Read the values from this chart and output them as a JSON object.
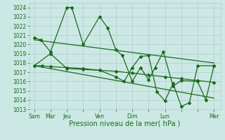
{
  "background_color": "#cce8e4",
  "grid_color": "#aacccc",
  "line_color": "#1a6b1a",
  "marker_color": "#1a6b1a",
  "xlabel": "Pression niveau de la mer( hPa )",
  "xlabel_fontsize": 7,
  "ylim": [
    1013,
    1024.5
  ],
  "yticks": [
    1013,
    1014,
    1015,
    1016,
    1017,
    1018,
    1019,
    1020,
    1021,
    1022,
    1023,
    1024
  ],
  "xtick_labels": [
    "Sam",
    "Mar",
    "Jeu",
    "",
    "Ven",
    "",
    "Dim",
    "",
    "Lun",
    "",
    "",
    "Mer"
  ],
  "xtick_positions": [
    0,
    1,
    2,
    3,
    4,
    5,
    6,
    7,
    8,
    9,
    10,
    11
  ],
  "main_series_x": [
    0,
    0.4,
    1.0,
    2.0,
    2.3,
    3.0,
    4.0,
    4.5,
    5.0,
    5.4,
    6.0,
    6.5,
    7.0,
    7.4,
    7.9,
    8.5,
    9.0,
    10.0,
    10.5,
    11.0
  ],
  "main_series_y": [
    1020.7,
    1020.5,
    1019.2,
    1024.0,
    1024.0,
    1020.0,
    1023.0,
    1021.8,
    1019.4,
    1018.8,
    1016.0,
    1017.5,
    1016.2,
    1017.5,
    1019.2,
    1015.5,
    1016.1,
    1016.0,
    1014.0,
    1017.7
  ],
  "trend1_x": [
    0,
    11
  ],
  "trend1_y": [
    1020.5,
    1018.0
  ],
  "trend2_x": [
    0,
    11
  ],
  "trend2_y": [
    1017.7,
    1014.2
  ],
  "slow_series_x": [
    0,
    0.5,
    1.0,
    2.0,
    3.0,
    4.0,
    5.0,
    6.0,
    7.0,
    8.0,
    9.0,
    10.0,
    11.0
  ],
  "slow_series_y": [
    1017.7,
    1017.7,
    1017.6,
    1017.5,
    1017.4,
    1017.2,
    1017.1,
    1016.9,
    1016.7,
    1016.5,
    1016.3,
    1016.1,
    1015.9
  ],
  "alt_series_x": [
    0,
    1.0,
    2.0,
    3.0,
    4.0,
    5.0,
    5.5,
    6.0,
    6.5,
    7.0,
    7.5,
    8.0,
    8.5,
    9.0,
    9.5,
    10.0,
    11.0
  ],
  "alt_series_y": [
    1017.7,
    1019.0,
    1017.4,
    1017.3,
    1017.2,
    1016.5,
    1016.0,
    1017.5,
    1018.7,
    1018.8,
    1014.9,
    1013.9,
    1015.8,
    1013.3,
    1013.7,
    1017.7,
    1017.7
  ]
}
